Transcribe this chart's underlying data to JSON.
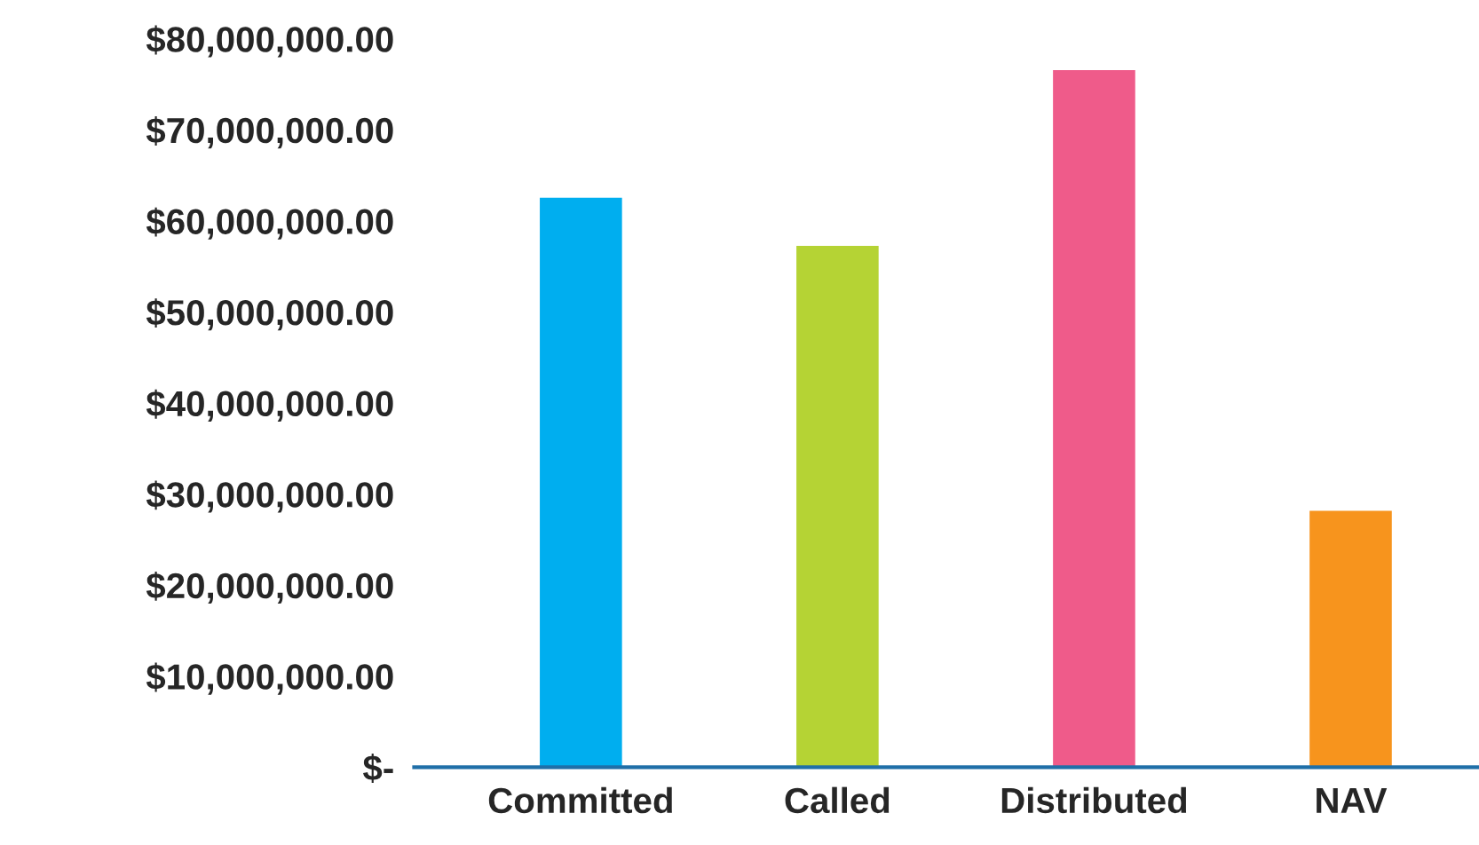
{
  "chart_data": {
    "type": "bar",
    "categories": [
      "Committed",
      "Called",
      "Distributed",
      "NAV"
    ],
    "values": [
      62700000,
      57400000,
      76700000,
      28300000
    ],
    "colors": [
      "#00aeef",
      "#b5d334",
      "#ef5b8a",
      "#f7941d"
    ],
    "ylim": [
      0,
      80000000
    ],
    "yticks": [
      {
        "value": 0,
        "label": "$-"
      },
      {
        "value": 10000000,
        "label": "$10,000,000.00"
      },
      {
        "value": 20000000,
        "label": "$20,000,000.00"
      },
      {
        "value": 30000000,
        "label": "$30,000,000.00"
      },
      {
        "value": 40000000,
        "label": "$40,000,000.00"
      },
      {
        "value": 50000000,
        "label": "$50,000,000.00"
      },
      {
        "value": 60000000,
        "label": "$60,000,000.00"
      },
      {
        "value": 70000000,
        "label": "$70,000,000.00"
      },
      {
        "value": 80000000,
        "label": "$80,000,000.00"
      }
    ],
    "grid": false
  }
}
